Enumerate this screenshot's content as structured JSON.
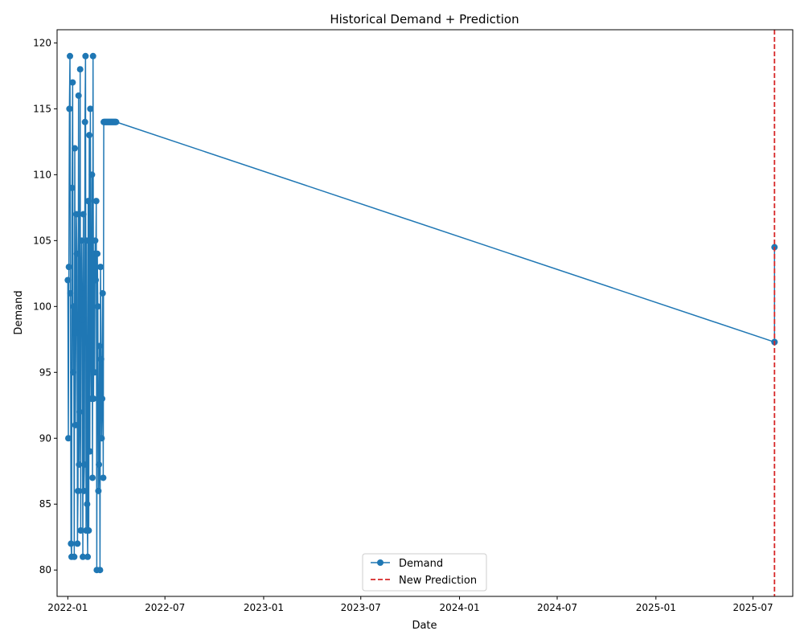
{
  "chart_data": {
    "type": "line",
    "title": "Historical Demand + Prediction",
    "xlabel": "Date",
    "ylabel": "Demand",
    "x_type": "date",
    "xlim": [
      "2021-12-12",
      "2025-09-13"
    ],
    "ylim": [
      78,
      121
    ],
    "x_ticks": [
      "2022-01-01",
      "2022-07-01",
      "2023-01-01",
      "2023-07-01",
      "2024-01-01",
      "2024-07-01",
      "2025-01-01",
      "2025-07-01"
    ],
    "x_tick_labels": [
      "2022-01",
      "2022-07",
      "2023-01",
      "2023-07",
      "2024-01",
      "2024-07",
      "2025-01",
      "2025-07"
    ],
    "y_ticks": [
      80,
      85,
      90,
      95,
      100,
      105,
      110,
      115,
      120
    ],
    "y_tick_labels": [
      "80",
      "85",
      "90",
      "95",
      "100",
      "105",
      "110",
      "115",
      "120"
    ],
    "grid": false,
    "legend": {
      "position": "bottom-center",
      "entries": [
        "Demand",
        "New Prediction"
      ]
    },
    "series": [
      {
        "name": "Demand",
        "color": "#1f77b4",
        "style": "line-with-markers",
        "x": [
          "2022-01-01",
          "2022-01-02",
          "2022-01-03",
          "2022-01-04",
          "2022-01-05",
          "2022-01-06",
          "2022-01-07",
          "2022-01-08",
          "2022-01-09",
          "2022-01-10",
          "2022-01-11",
          "2022-01-12",
          "2022-01-13",
          "2022-01-14",
          "2022-01-15",
          "2022-01-16",
          "2022-01-17",
          "2022-01-18",
          "2022-01-19",
          "2022-01-20",
          "2022-01-21",
          "2022-01-22",
          "2022-01-23",
          "2022-01-24",
          "2022-01-25",
          "2022-01-26",
          "2022-01-27",
          "2022-01-28",
          "2022-01-29",
          "2022-01-30",
          "2022-01-31",
          "2022-02-01",
          "2022-02-02",
          "2022-02-03",
          "2022-02-04",
          "2022-02-05",
          "2022-02-06",
          "2022-02-07",
          "2022-02-08",
          "2022-02-09",
          "2022-02-10",
          "2022-02-11",
          "2022-02-12",
          "2022-02-13",
          "2022-02-14",
          "2022-02-15",
          "2022-02-16",
          "2022-02-17",
          "2022-02-18",
          "2022-02-19",
          "2022-02-20",
          "2022-02-21",
          "2022-02-22",
          "2022-02-23",
          "2022-02-24",
          "2022-02-25",
          "2022-02-26",
          "2022-02-27",
          "2022-02-28",
          "2022-03-01",
          "2022-03-02",
          "2022-03-03",
          "2022-03-04",
          "2022-03-05",
          "2022-03-06",
          "2022-03-07",
          "2022-03-08",
          "2022-03-09",
          "2022-03-10",
          "2022-03-11",
          "2022-03-12",
          "2022-03-13",
          "2022-03-14",
          "2022-03-15",
          "2022-03-16",
          "2022-03-17",
          "2022-03-18",
          "2022-03-19",
          "2022-03-20",
          "2022-03-21",
          "2022-03-22",
          "2022-03-23",
          "2022-03-24",
          "2022-03-25",
          "2022-03-26",
          "2022-03-27",
          "2022-03-28",
          "2022-03-29",
          "2022-03-30",
          "2022-03-31",
          "2022-04-01",
          "2025-08-10"
        ],
        "values": [
          102,
          90,
          103,
          115,
          119,
          101,
          82,
          81,
          109,
          117,
          95,
          100,
          81,
          112,
          91,
          98,
          107,
          104,
          82,
          86,
          116,
          88,
          92,
          118,
          83,
          101,
          105,
          99,
          81,
          107,
          86,
          88,
          114,
          119,
          83,
          105,
          85,
          81,
          108,
          83,
          113,
          89,
          115,
          97,
          93,
          110,
          87,
          119,
          93,
          104,
          95,
          105,
          102,
          108,
          80,
          104,
          100,
          86,
          88,
          97,
          80,
          103,
          96,
          90,
          93,
          101,
          87,
          114,
          114,
          114,
          114,
          114,
          114,
          114,
          114,
          114,
          114,
          114,
          114,
          114,
          114,
          114,
          114,
          114,
          114,
          114,
          114,
          114,
          114,
          114,
          114,
          97.3
        ]
      },
      {
        "name": "",
        "color": "#1f77b4",
        "style": "line-with-markers",
        "x": [
          "2025-08-10",
          "2025-08-10"
        ],
        "values": [
          97.3,
          104.5
        ]
      }
    ],
    "annotations": [
      {
        "type": "vline",
        "label": "New Prediction",
        "x": "2025-08-10",
        "color": "#d62728",
        "style": "dashed"
      }
    ]
  }
}
